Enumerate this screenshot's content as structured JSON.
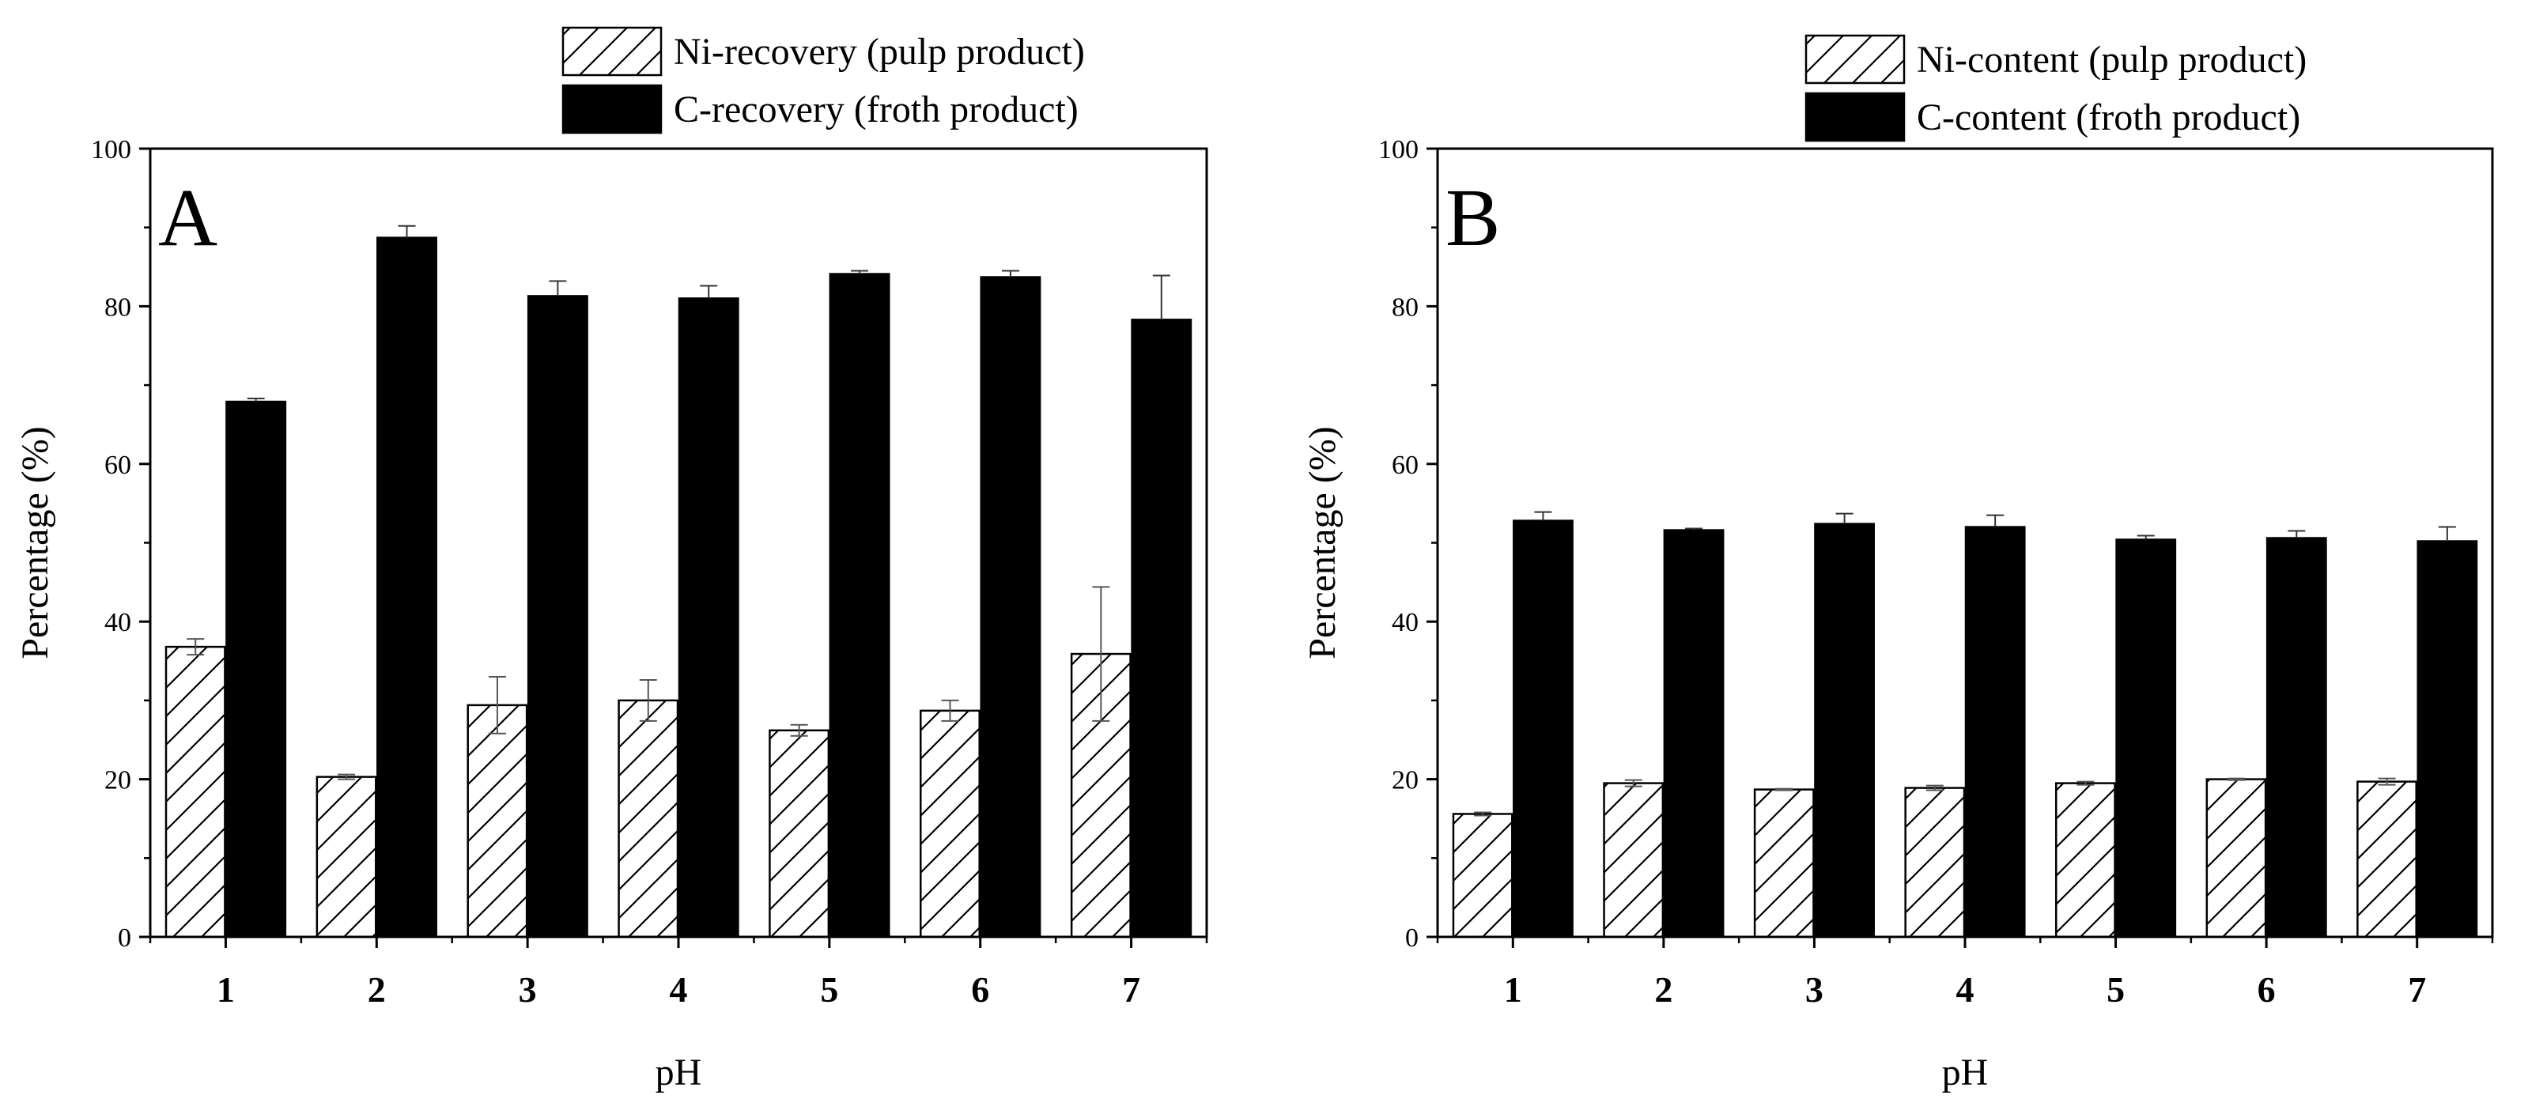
{
  "chart_data": [
    {
      "type": "bar",
      "panel_label": "A",
      "categories": [
        "1",
        "2",
        "3",
        "4",
        "5",
        "6",
        "7"
      ],
      "xlabel": "pH",
      "ylabel": "Percentage (%)",
      "ylim": [
        0,
        100
      ],
      "yticks": [
        "0",
        "20",
        "40",
        "60",
        "80",
        "100"
      ],
      "legend_position": "top-right, outside plot",
      "series": [
        {
          "name": "Ni-recovery (pulp product)",
          "pattern": "hatched",
          "color": "#ffffff",
          "values": [
            36.8,
            20.3,
            29.4,
            30.0,
            26.2,
            28.7,
            35.9
          ],
          "errors": [
            1.0,
            0.3,
            3.6,
            2.6,
            0.7,
            1.3,
            8.5
          ]
        },
        {
          "name": "C-recovery (froth product)",
          "pattern": "solid",
          "color": "#000000",
          "values": [
            67.9,
            88.7,
            81.3,
            81.0,
            84.1,
            83.7,
            78.3
          ],
          "errors": [
            0.4,
            1.5,
            1.9,
            1.6,
            0.4,
            0.8,
            5.6
          ]
        }
      ]
    },
    {
      "type": "bar",
      "panel_label": "B",
      "categories": [
        "1",
        "2",
        "3",
        "4",
        "5",
        "6",
        "7"
      ],
      "xlabel": "pH",
      "ylabel": "Percentage (%)",
      "ylim": [
        0,
        100
      ],
      "yticks": [
        "0",
        "20",
        "40",
        "60",
        "80",
        "100"
      ],
      "legend_position": "top-right, outside plot",
      "series": [
        {
          "name": "Ni-content (pulp product)",
          "pattern": "hatched",
          "color": "#ffffff",
          "values": [
            15.6,
            19.5,
            18.7,
            18.9,
            19.5,
            20.0,
            19.7
          ],
          "errors": [
            0.2,
            0.4,
            0.1,
            0.3,
            0.2,
            0.1,
            0.4
          ]
        },
        {
          "name": "C-content (froth product)",
          "pattern": "solid",
          "color": "#000000",
          "values": [
            52.8,
            51.6,
            52.4,
            52.0,
            50.4,
            50.6,
            50.2
          ],
          "errors": [
            1.1,
            0.2,
            1.3,
            1.5,
            0.5,
            0.9,
            1.8
          ]
        }
      ]
    }
  ]
}
